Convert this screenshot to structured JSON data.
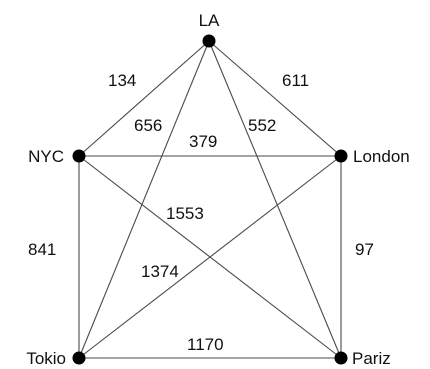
{
  "nodes": [
    {
      "id": "LA",
      "label": "LA"
    },
    {
      "id": "NYC",
      "label": "NYC"
    },
    {
      "id": "London",
      "label": "London"
    },
    {
      "id": "Tokio",
      "label": "Tokio"
    },
    {
      "id": "Pariz",
      "label": "Pariz"
    }
  ],
  "edges": [
    {
      "id": "la-nyc",
      "from": "LA",
      "to": "NYC",
      "weight": "134"
    },
    {
      "id": "la-london",
      "from": "LA",
      "to": "London",
      "weight": "611"
    },
    {
      "id": "la-tokio",
      "from": "LA",
      "to": "Tokio",
      "weight": "656"
    },
    {
      "id": "la-pariz",
      "from": "LA",
      "to": "Pariz",
      "weight": "552"
    },
    {
      "id": "nyc-london",
      "from": "NYC",
      "to": "London",
      "weight": "379"
    },
    {
      "id": "nyc-pariz",
      "from": "NYC",
      "to": "Pariz",
      "weight": "1553"
    },
    {
      "id": "nyc-tokio",
      "from": "NYC",
      "to": "Tokio",
      "weight": "841"
    },
    {
      "id": "london-tokio",
      "from": "London",
      "to": "Tokio",
      "weight": "1374"
    },
    {
      "id": "london-pariz",
      "from": "London",
      "to": "Pariz",
      "weight": "97"
    },
    {
      "id": "tokio-pariz",
      "from": "Tokio",
      "to": "Pariz",
      "weight": "1170"
    }
  ]
}
